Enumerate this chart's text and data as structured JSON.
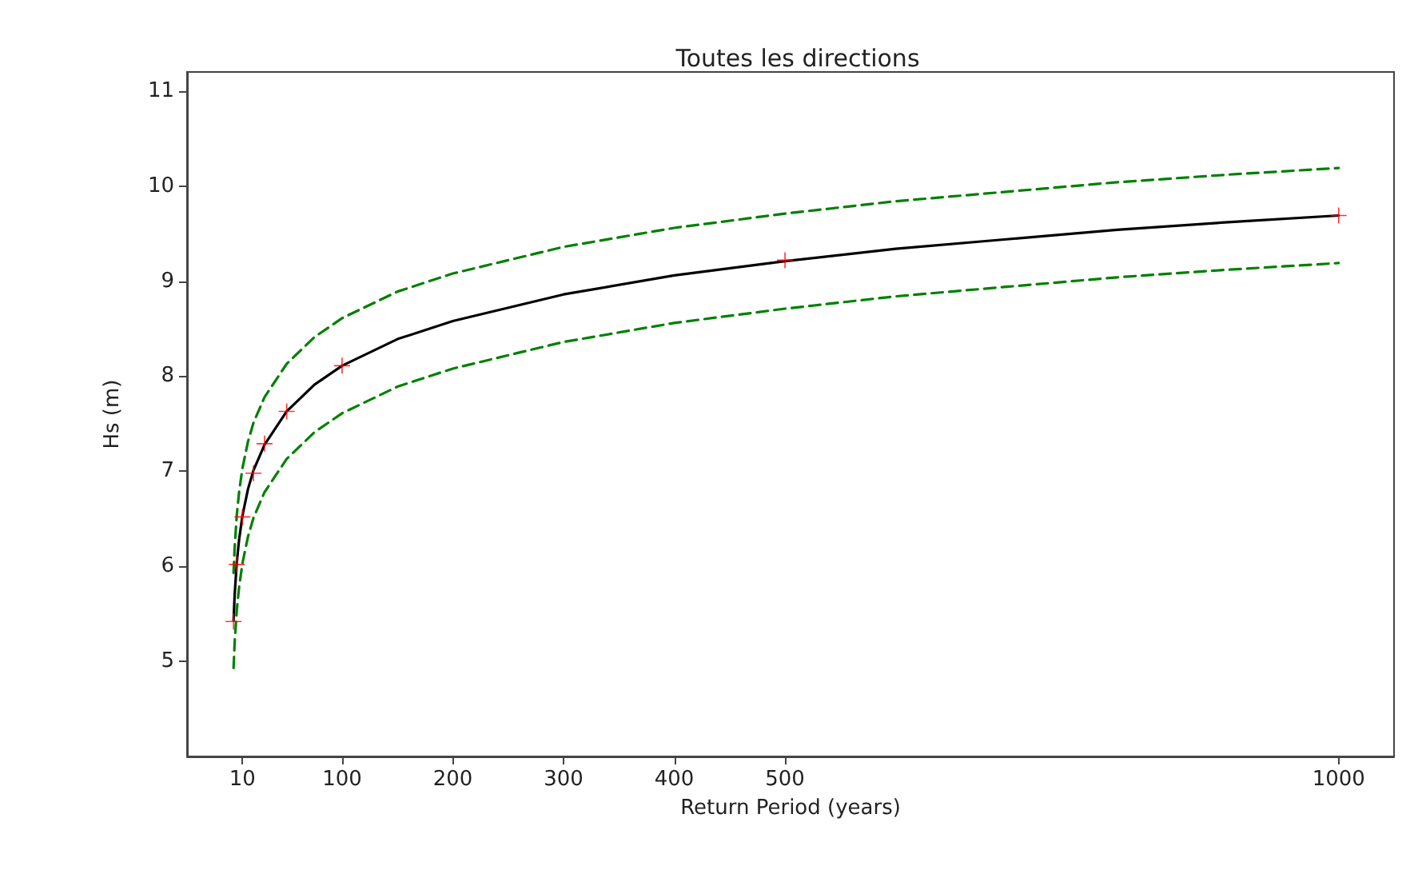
{
  "chart_data": {
    "type": "line",
    "title": "Toutes les directions",
    "xlabel": "Return Period (years)",
    "ylabel": "Hs (m)",
    "xlim": [
      -40,
      1050
    ],
    "ylim": [
      4,
      11.2
    ],
    "xticks": [
      10,
      100,
      200,
      300,
      400,
      500,
      1000
    ],
    "yticks": [
      5,
      6,
      7,
      8,
      9,
      10,
      11
    ],
    "grid": false,
    "series": [
      {
        "color": "#008000",
        "line_style": "dashed",
        "marker": "none",
        "x": [
          2,
          3,
          5,
          7,
          10,
          15,
          20,
          30,
          50,
          75,
          100,
          150,
          200,
          300,
          400,
          500,
          600,
          700,
          800,
          900,
          1000
        ],
        "values": [
          5.93,
          6.2,
          6.55,
          6.78,
          7.03,
          7.31,
          7.51,
          7.78,
          8.13,
          8.41,
          8.61,
          8.89,
          9.08,
          9.36,
          9.56,
          9.71,
          9.84,
          9.94,
          10.04,
          10.12,
          10.19
        ]
      },
      {
        "color": "#008000",
        "line_style": "dashed",
        "marker": "none",
        "x": [
          2,
          3,
          5,
          7,
          10,
          15,
          20,
          30,
          50,
          75,
          100,
          150,
          200,
          300,
          400,
          500,
          600,
          700,
          800,
          900,
          1000
        ],
        "values": [
          4.93,
          5.2,
          5.55,
          5.78,
          6.03,
          6.31,
          6.51,
          6.78,
          7.13,
          7.41,
          7.61,
          7.89,
          8.08,
          8.36,
          8.56,
          8.71,
          8.84,
          8.94,
          9.04,
          9.12,
          9.19
        ]
      },
      {
        "color": "#000000",
        "line_style": "solid",
        "marker": "none",
        "x": [
          2,
          3,
          5,
          7,
          10,
          15,
          20,
          30,
          50,
          75,
          100,
          150,
          200,
          300,
          400,
          500,
          600,
          700,
          800,
          900,
          1000
        ],
        "values": [
          5.43,
          5.7,
          6.05,
          6.28,
          6.53,
          6.81,
          7.01,
          7.28,
          7.63,
          7.91,
          8.11,
          8.39,
          8.58,
          8.86,
          9.06,
          9.21,
          9.34,
          9.44,
          9.54,
          9.62,
          9.69
        ]
      },
      {
        "type": "scatter",
        "color": "#ff0000",
        "marker": "cross",
        "x": [
          2,
          5,
          10,
          20,
          30,
          50,
          100,
          500,
          1000
        ],
        "values": [
          5.42,
          6.02,
          6.52,
          6.98,
          7.29,
          7.63,
          8.11,
          9.22,
          9.69
        ]
      }
    ]
  }
}
